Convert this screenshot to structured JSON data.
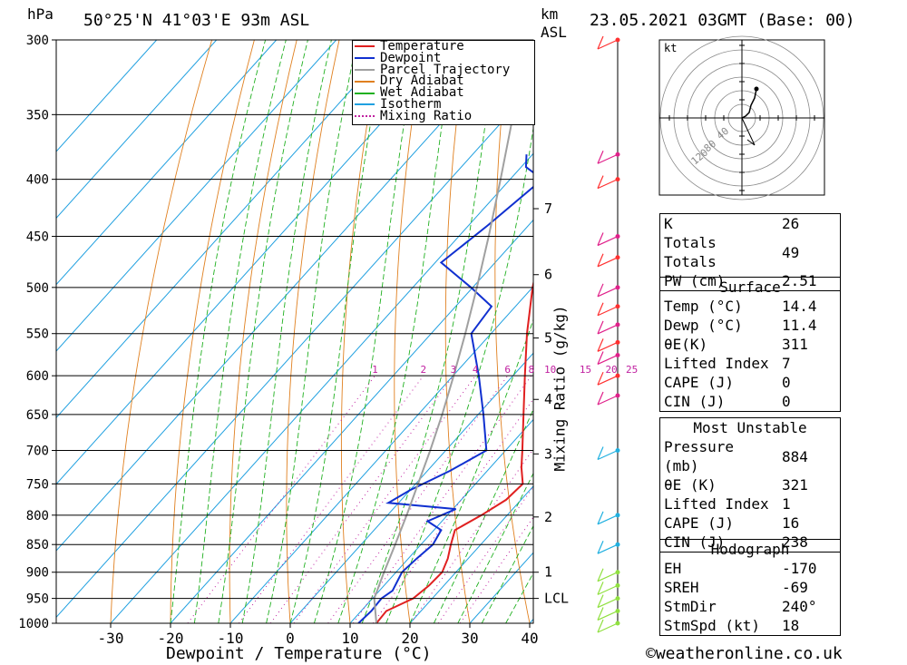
{
  "header": {
    "pressure_unit": "hPa",
    "location": "50°25'N 41°03'E 93m ASL",
    "km_unit": "km",
    "asl": "ASL",
    "datetime": "23.05.2021 03GMT (Base: 00)"
  },
  "legend": {
    "items": [
      {
        "label": "Temperature",
        "color": "#e02020"
      },
      {
        "label": "Dewpoint",
        "color": "#1030d0"
      },
      {
        "label": "Parcel Trajectory",
        "color": "#a0a0a0"
      },
      {
        "label": "Dry Adiabat",
        "color": "#e08020"
      },
      {
        "label": "Wet Adiabat",
        "color": "#20b020"
      },
      {
        "label": "Isotherm",
        "color": "#20a0e0"
      },
      {
        "label": "Mixing Ratio",
        "color": "#c020a0"
      }
    ]
  },
  "axes": {
    "xlabel": "Dewpoint / Temperature (°C)",
    "mixing_ratio_label": "Mixing Ratio (g/kg)",
    "lcl_label": "LCL"
  },
  "hodograph": {
    "unit": "kt",
    "ring_labels": [
      "40",
      "80",
      "120"
    ]
  },
  "indices": {
    "k": {
      "label": "K",
      "value": "26"
    },
    "tt": {
      "label": "Totals Totals",
      "value": "49"
    },
    "pw": {
      "label": "PW (cm)",
      "value": "2.51"
    }
  },
  "surface": {
    "title": "Surface",
    "rows": [
      {
        "label": "Temp (°C)",
        "value": "14.4"
      },
      {
        "label": "Dewp (°C)",
        "value": "11.4"
      },
      {
        "label": "θE(K)",
        "value": "311"
      },
      {
        "label": "Lifted Index",
        "value": "7"
      },
      {
        "label": "CAPE (J)",
        "value": "0"
      },
      {
        "label": "CIN (J)",
        "value": "0"
      }
    ]
  },
  "most_unstable": {
    "title": "Most Unstable",
    "rows": [
      {
        "label": "Pressure (mb)",
        "value": "884"
      },
      {
        "label": "θE (K)",
        "value": "321"
      },
      {
        "label": "Lifted Index",
        "value": "1"
      },
      {
        "label": "CAPE (J)",
        "value": "16"
      },
      {
        "label": "CIN (J)",
        "value": "238"
      }
    ]
  },
  "hodograph_table": {
    "title": "Hodograph",
    "rows": [
      {
        "label": "EH",
        "value": "-170"
      },
      {
        "label": "SREH",
        "value": "-69"
      },
      {
        "label": "StmDir",
        "value": "240°"
      },
      {
        "label": "StmSpd (kt)",
        "value": "18"
      }
    ]
  },
  "footer": {
    "copyright": "©weatheronline.co.uk"
  },
  "chart_data": {
    "type": "line",
    "title": "",
    "xlabel": "Dewpoint / Temperature (°C)",
    "ylabel": "hPa",
    "x_ticks": [
      -30,
      -20,
      -10,
      0,
      10,
      20,
      30,
      40
    ],
    "xlim": [
      -40,
      40
    ],
    "pressure_levels": [
      300,
      350,
      400,
      450,
      500,
      550,
      600,
      650,
      700,
      750,
      800,
      850,
      900,
      950,
      1000
    ],
    "ylim": [
      1000,
      300
    ],
    "y_scale": "log",
    "km_ticks": [
      {
        "p": 950,
        "label": "LCL"
      },
      {
        "p": 900,
        "label": "1"
      },
      {
        "p": 803,
        "label": "2"
      },
      {
        "p": 705,
        "label": "3"
      },
      {
        "p": 630,
        "label": "4"
      },
      {
        "p": 555,
        "label": "5"
      },
      {
        "p": 487,
        "label": "6"
      },
      {
        "p": 425,
        "label": "7"
      }
    ],
    "mixing_ratio_labels": [
      "1",
      "2",
      "3",
      "4",
      "6",
      "8",
      "10",
      "15",
      "20",
      "25"
    ],
    "mixing_ratio_values": [
      1,
      2,
      3,
      4,
      6,
      8,
      10,
      15,
      20,
      25
    ],
    "series": [
      {
        "name": "Temperature",
        "points": [
          [
            1000,
            14.4
          ],
          [
            975,
            14.2
          ],
          [
            950,
            16.8
          ],
          [
            925,
            17.5
          ],
          [
            900,
            17.7
          ],
          [
            875,
            16.6
          ],
          [
            850,
            15.0
          ],
          [
            825,
            13.5
          ],
          [
            800,
            15.7
          ],
          [
            775,
            17.5
          ],
          [
            750,
            17.9
          ],
          [
            725,
            15.2
          ],
          [
            700,
            12.8
          ],
          [
            650,
            7.6
          ],
          [
            600,
            2.0
          ],
          [
            550,
            -4.0
          ],
          [
            500,
            -10.0
          ],
          [
            450,
            -15.8
          ],
          [
            400,
            -22.0
          ],
          [
            390,
            -23.3
          ],
          [
            380,
            -24.1
          ]
        ]
      },
      {
        "name": "Dewpoint",
        "points": [
          [
            1000,
            11.4
          ],
          [
            975,
            11.7
          ],
          [
            950,
            11.5
          ],
          [
            935,
            12.2
          ],
          [
            900,
            11.0
          ],
          [
            875,
            11.4
          ],
          [
            850,
            12.0
          ],
          [
            825,
            11.2
          ],
          [
            810,
            7.6
          ],
          [
            790,
            10.5
          ],
          [
            780,
            -1.7
          ],
          [
            760,
            0.0
          ],
          [
            730,
            3.8
          ],
          [
            700,
            6.8
          ],
          [
            650,
            0.9
          ],
          [
            600,
            -5.7
          ],
          [
            550,
            -13.3
          ],
          [
            520,
            -14.0
          ],
          [
            500,
            -20.3
          ],
          [
            475,
            -29.0
          ],
          [
            440,
            -26.8
          ],
          [
            400,
            -24.6
          ],
          [
            390,
            -29.2
          ],
          [
            380,
            -31.0
          ]
        ]
      },
      {
        "name": "Parcel Trajectory",
        "points": [
          [
            1000,
            14.4
          ],
          [
            950,
            10.3
          ],
          [
            900,
            8.0
          ],
          [
            850,
            5.7
          ],
          [
            800,
            3.2
          ],
          [
            750,
            0.4
          ],
          [
            700,
            -2.6
          ],
          [
            650,
            -6.0
          ],
          [
            600,
            -9.9
          ],
          [
            550,
            -14.3
          ],
          [
            500,
            -19.3
          ],
          [
            450,
            -25.0
          ],
          [
            400,
            -31.6
          ],
          [
            350,
            -39.2
          ],
          [
            320,
            -44.5
          ]
        ]
      }
    ]
  }
}
